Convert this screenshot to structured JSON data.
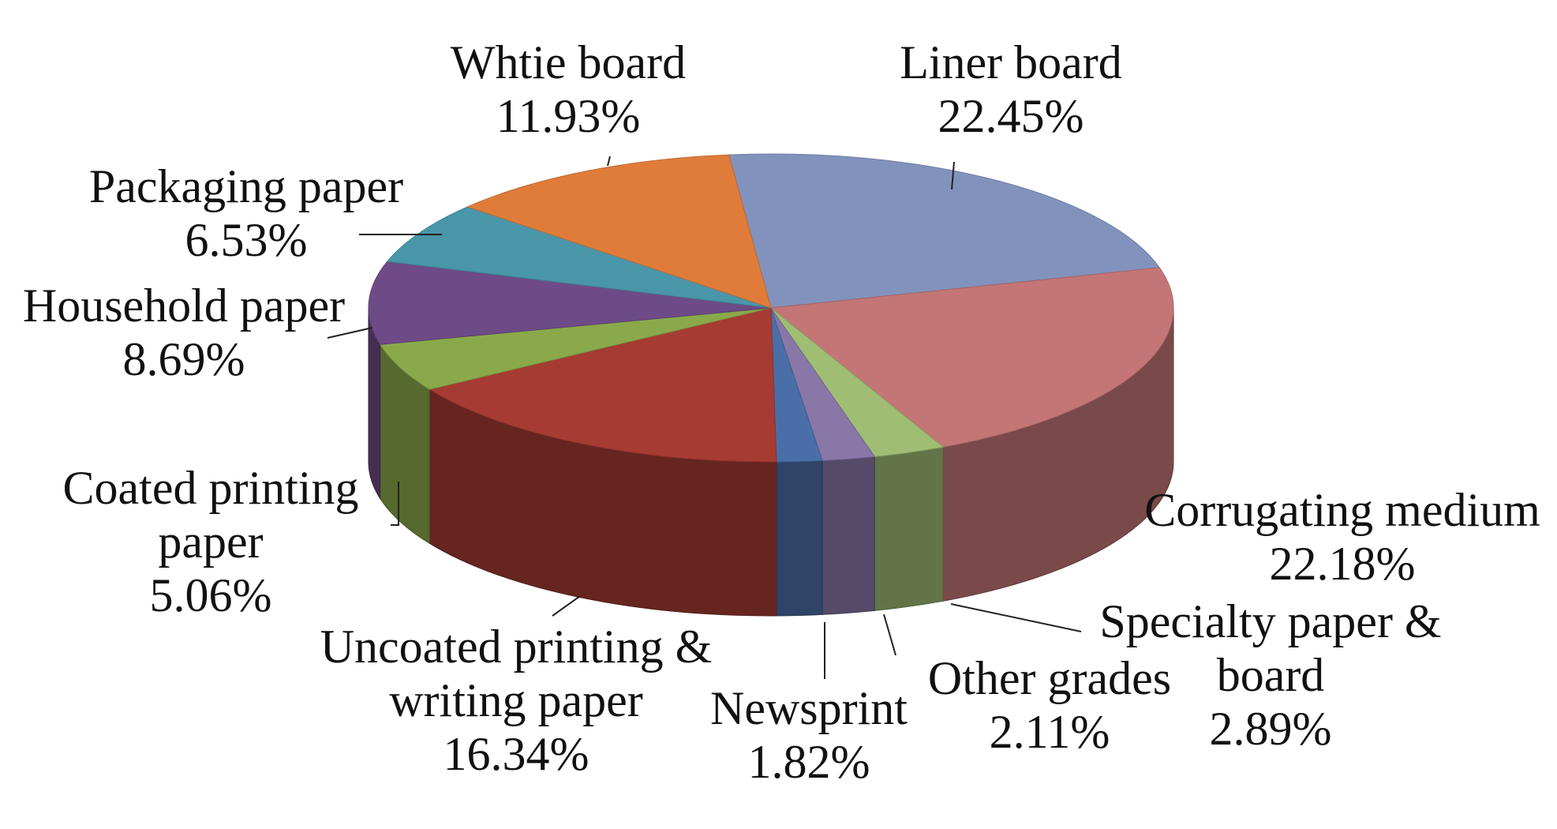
{
  "chart_data": {
    "type": "pie3d",
    "categories": [
      "Liner board",
      "Corrugating medium",
      "Specialty paper & board",
      "Other grades",
      "Newsprint",
      "Uncoated printing & writing paper",
      "Coated printing paper",
      "Household paper",
      "Packaging paper",
      "Whtie board"
    ],
    "values": [
      22.45,
      22.18,
      2.89,
      2.11,
      1.82,
      16.34,
      5.06,
      8.69,
      6.53,
      11.93
    ],
    "value_labels": [
      "22.45%",
      "22.18%",
      "2.89%",
      "2.11%",
      "1.82%",
      "16.34%",
      "5.06%",
      "8.69%",
      "6.53%",
      "11.93%"
    ],
    "colors": [
      "#8193bd",
      "#c47676",
      "#a0bd74",
      "#8977a7",
      "#4a6fa8",
      "#a63b33",
      "#8aa94b",
      "#6e4b86",
      "#4996a9",
      "#e07c3a"
    ]
  }
}
